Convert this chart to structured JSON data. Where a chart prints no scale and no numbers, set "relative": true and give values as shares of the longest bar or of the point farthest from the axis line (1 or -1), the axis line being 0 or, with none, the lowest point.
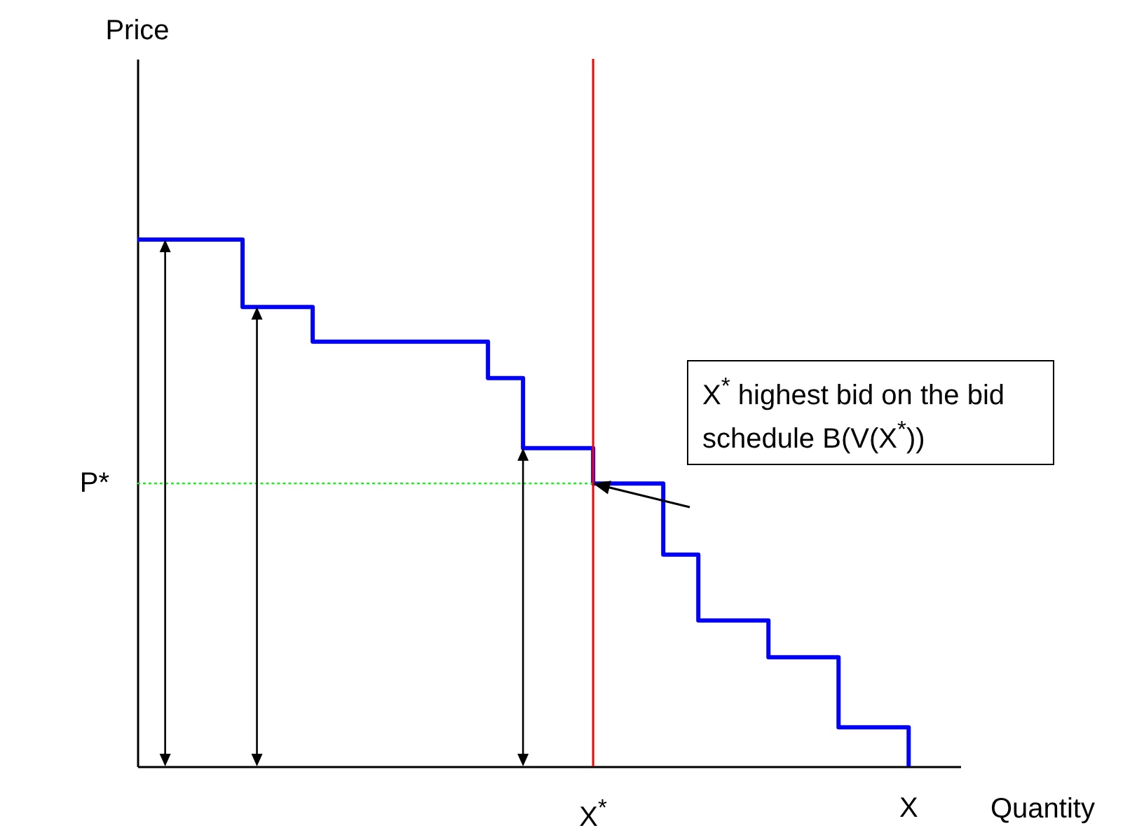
{
  "chart_data": {
    "type": "step",
    "xlabel": "Quantity",
    "relative": true,
    "categories": [
      null,
      null,
      null,
      null,
      null,
      null,
      null,
      null,
      null,
      null,
      null,
      null,
      null,
      "X$^{*}$",
      null,
      null,
      null,
      null,
      null,
      null,
      null,
      null,
      "X"
    ],
    "series": [
      {
        "color": "#0000ff",
        "values": [
          1,
          1,
          1,
          0.872,
          0.872,
          0.806,
          0.806,
          0.806,
          0.806,
          0.806,
          0.737,
          0.604,
          0.604,
          0.537,
          0.537,
          0.402,
          0.277,
          0.277,
          0.207,
          0.207,
          0.074,
          0.074,
          0
        ]
      },
      {
        "type": "line",
        "color": "#00ff00",
        "line_style": "dotted",
        "values": [
          0.537,
          0.537,
          0.537,
          0.537,
          0.537,
          0.537,
          0.537,
          0.537,
          0.537,
          0.537,
          0.537,
          0.537,
          0.537,
          0.537,
          null,
          null,
          null,
          null,
          null,
          null,
          null,
          null,
          null
        ]
      }
    ],
    "ref_lines": [
      {
        "axis": "x",
        "value": "X$^{*}$",
        "color": "#ff0000"
      }
    ],
    "annotations": [
      "P*",
      "X$^{*}$ highest bid on the bid schedule B(V(X$^{*}$))",
      "Price"
    ]
  }
}
